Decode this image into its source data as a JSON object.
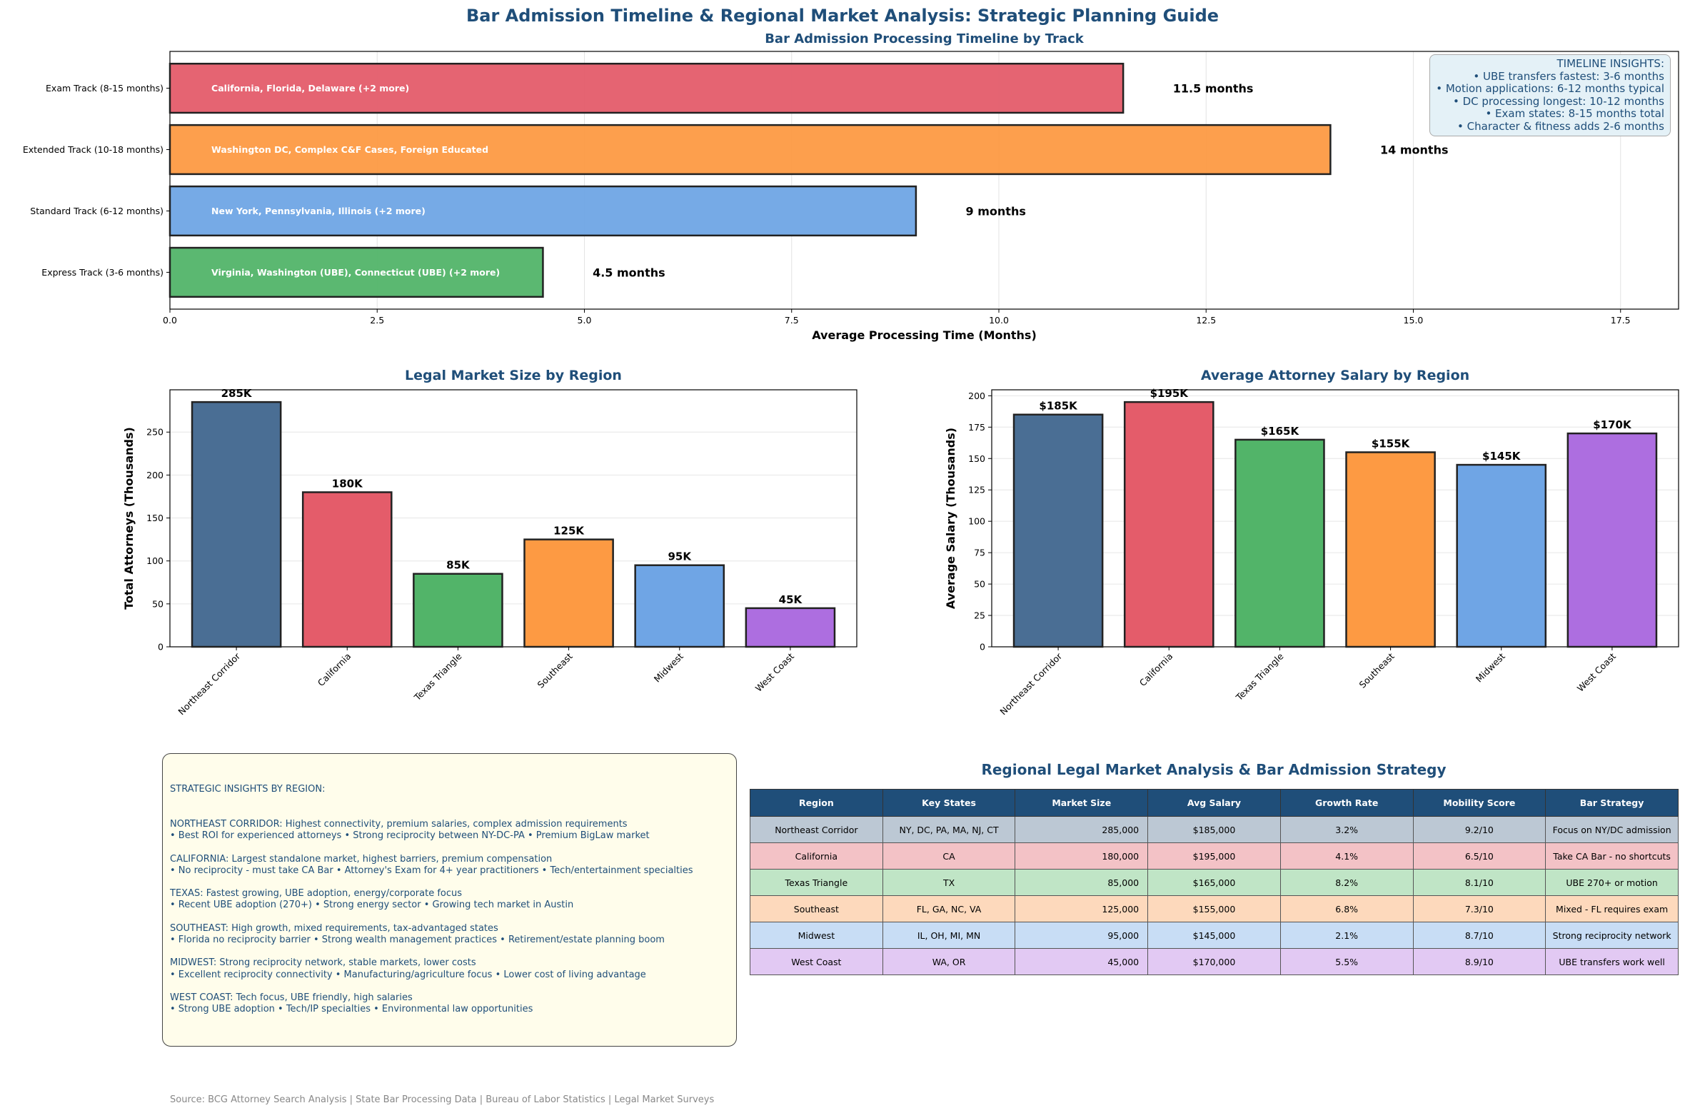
{
  "title": "Bar Admission Timeline & Regional Market Analysis: Strategic Planning Guide",
  "chart_data": [
    {
      "type": "bar",
      "orientation": "horizontal",
      "title": "Bar Admission Processing Timeline by Track",
      "xlabel": "Average Processing Time (Months)",
      "ylabel": "",
      "xlim": [
        0,
        18.2
      ],
      "xticks": [
        "0.0",
        "2.5",
        "5.0",
        "7.5",
        "10.0",
        "12.5",
        "15.0",
        "17.5"
      ],
      "grid": "x",
      "categories": [
        "Express Track (3-6 months)",
        "Standard Track (6-12 months)",
        "Extended Track (10-18 months)",
        "Exam Track (8-15 months)"
      ],
      "values": [
        4.5,
        9,
        14,
        11.5
      ],
      "value_labels": [
        "4.5 months",
        "9 months",
        "14 months",
        "11.5 months"
      ],
      "bar_texts": [
        "Virginia, Washington (UBE), Connecticut (UBE) (+2 more)",
        "New York, Pennsylvania, Illinois (+2 more)",
        "Washington DC, Complex C&F Cases, Foreign Educated",
        "California, Florida, Delaware (+2 more)"
      ],
      "colors": [
        "#52b469",
        "#6fa5e5",
        "#fd9a43",
        "#e45c6a"
      ],
      "annotation": {
        "title": "TIMELINE INSIGHTS:",
        "lines": [
          "• UBE transfers fastest: 3-6 months",
          "• Motion applications: 6-12 months typical",
          "• DC processing longest: 10-12 months",
          "• Exam states: 8-15 months total",
          "• Character & fitness adds 2-6 months"
        ],
        "placement": "top-right"
      }
    },
    {
      "type": "bar",
      "title": "Legal Market Size by Region",
      "xlabel": "",
      "ylabel": "Total Attorneys (Thousands)",
      "ylim": [
        0,
        299.25
      ],
      "yticks": [
        0,
        50,
        100,
        150,
        200,
        250
      ],
      "grid": "y",
      "categories": [
        "Northeast Corridor",
        "California",
        "Texas Triangle",
        "Southeast",
        "Midwest",
        "West Coast"
      ],
      "values": [
        285,
        180,
        85,
        125,
        95,
        45
      ],
      "value_labels": [
        "285K",
        "180K",
        "85K",
        "125K",
        "95K",
        "45K"
      ],
      "colors": [
        "#4a6e94",
        "#e45c6a",
        "#52b469",
        "#fd9a43",
        "#6fa5e5",
        "#ad6ee0"
      ]
    },
    {
      "type": "bar",
      "title": "Average Attorney Salary by Region",
      "xlabel": "",
      "ylabel": "Average Salary (Thousands)",
      "ylim": [
        0,
        204.75
      ],
      "yticks": [
        0,
        25,
        50,
        75,
        100,
        125,
        150,
        175,
        200
      ],
      "grid": "y",
      "categories": [
        "Northeast Corridor",
        "California",
        "Texas Triangle",
        "Southeast",
        "Midwest",
        "West Coast"
      ],
      "values": [
        185,
        195,
        165,
        155,
        145,
        170
      ],
      "value_labels": [
        "$185K",
        "$195K",
        "$165K",
        "$155K",
        "$145K",
        "$170K"
      ],
      "colors": [
        "#4a6e94",
        "#e45c6a",
        "#52b469",
        "#fd9a43",
        "#6fa5e5",
        "#ad6ee0"
      ]
    },
    {
      "type": "table",
      "title": "Regional Legal Market Analysis & Bar Admission Strategy",
      "columns": [
        "Region",
        "Key States",
        "Market Size",
        "Avg Salary",
        "Growth Rate",
        "Mobility Score",
        "Bar Strategy"
      ],
      "rows": [
        [
          "Northeast Corridor",
          "NY, DC, PA, MA, NJ, CT",
          "285,000",
          "$185,000",
          "3.2%",
          "9.2/10",
          "Focus on NY/DC admission"
        ],
        [
          "California",
          "CA",
          "180,000",
          "$195,000",
          "4.1%",
          "6.5/10",
          "Take CA Bar - no shortcuts"
        ],
        [
          "Texas Triangle",
          "TX",
          "85,000",
          "$165,000",
          "8.2%",
          "8.1/10",
          "UBE 270+ or motion"
        ],
        [
          "Southeast",
          "FL, GA, NC, VA",
          "125,000",
          "$155,000",
          "6.8%",
          "7.3/10",
          "Mixed - FL requires exam"
        ],
        [
          "Midwest",
          "IL, OH, MI, MN",
          "95,000",
          "$145,000",
          "2.1%",
          "8.7/10",
          "Strong reciprocity network"
        ],
        [
          "West Coast",
          "WA, OR",
          "45,000",
          "$170,000",
          "5.5%",
          "8.9/10",
          "UBE transfers work well"
        ]
      ],
      "header_color": "#1f4e79",
      "row_colors": [
        "#bcc8d4",
        "#f3c2c6",
        "#c0e5c6",
        "#fdd9bc",
        "#c8ddf5",
        "#e2c9f3"
      ]
    }
  ],
  "insights": {
    "title": "STRATEGIC INSIGHTS BY REGION:",
    "sections": [
      [
        "NORTHEAST CORRIDOR: Highest connectivity, premium salaries, complex admission requirements",
        "• Best ROI for experienced attorneys • Strong reciprocity between NY-DC-PA • Premium BigLaw market"
      ],
      [
        "CALIFORNIA: Largest standalone market, highest barriers, premium compensation",
        "• No reciprocity - must take CA Bar • Attorney's Exam for 4+ year practitioners • Tech/entertainment specialties"
      ],
      [
        "TEXAS: Fastest growing, UBE adoption, energy/corporate focus",
        "• Recent UBE adoption (270+) • Strong energy sector • Growing tech market in Austin"
      ],
      [
        "SOUTHEAST: High growth, mixed requirements, tax-advantaged states",
        "• Florida no reciprocity barrier • Strong wealth management practices • Retirement/estate planning boom"
      ],
      [
        "MIDWEST: Strong reciprocity network, stable markets, lower costs",
        "• Excellent reciprocity connectivity • Manufacturing/agriculture focus • Lower cost of living advantage"
      ],
      [
        "WEST COAST: Tech focus, UBE friendly, high salaries",
        "• Strong UBE adoption • Tech/IP specialties • Environmental law opportunities"
      ]
    ]
  },
  "source": "Source: BCG Attorney Search Analysis | State Bar Processing Data | Bureau of Labor Statistics | Legal Market Surveys"
}
